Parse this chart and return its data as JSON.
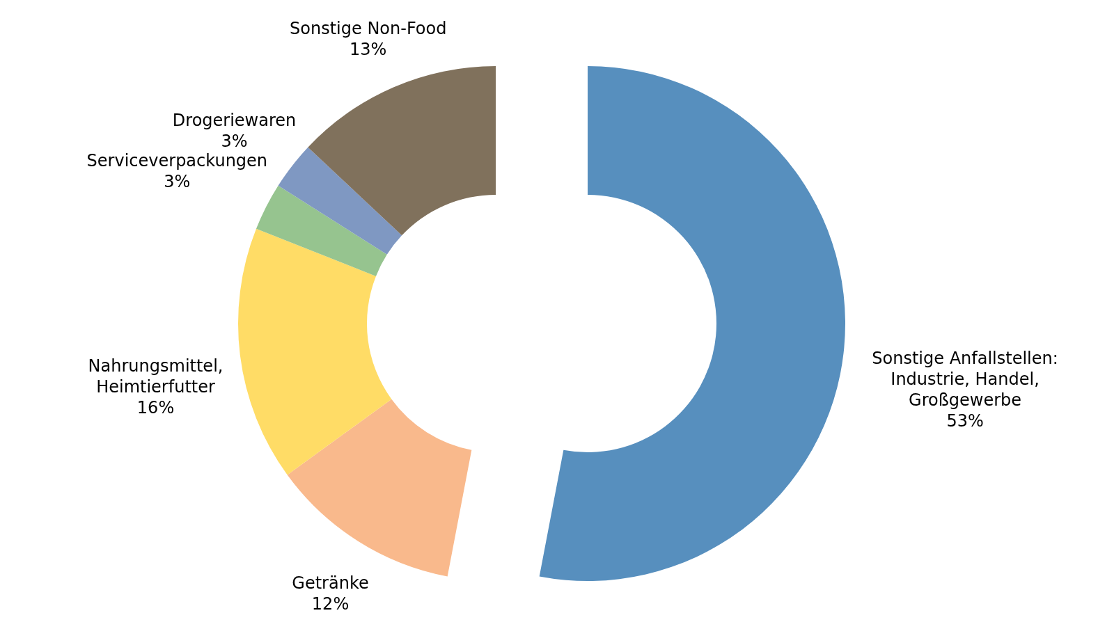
{
  "chart_data": {
    "type": "donut",
    "categories": [
      "Sonstige Anfallstellen:\nIndustrie, Handel,\nGroßgewerbe",
      "Getränke",
      "Nahrungsmittel,\nHeimtierfutter",
      "Serviceverpackungen",
      "Drogeriewaren",
      "Sonstige Non-Food"
    ],
    "values": [
      53,
      12,
      16,
      3,
      3,
      13
    ],
    "value_labels": [
      "53%",
      "12%",
      "16%",
      "3%",
      "3%",
      "13%"
    ],
    "colors": [
      "#578fbe",
      "#f9b98c",
      "#ffdc66",
      "#96c48f",
      "#7f98c2",
      "#80715c"
    ]
  }
}
